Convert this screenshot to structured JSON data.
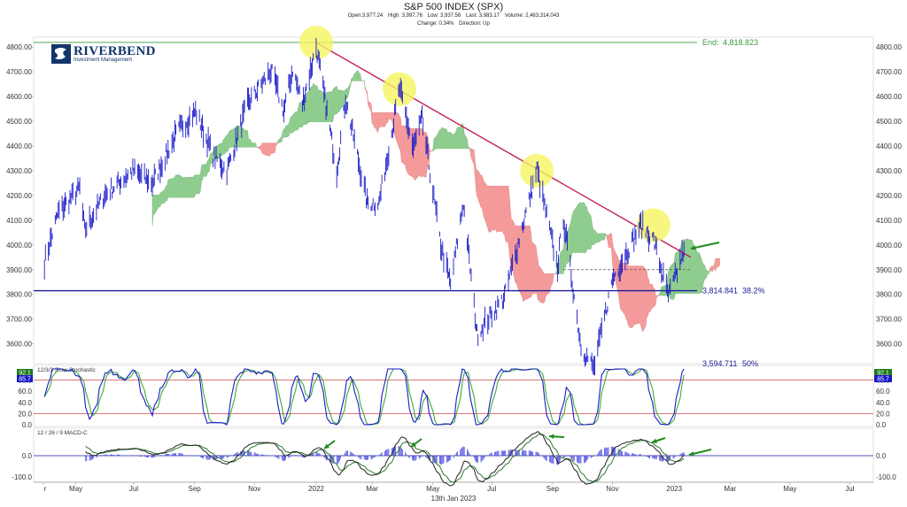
{
  "header": {
    "title": "S&P 500 INDEX (SPX)",
    "open": "Open:3,977.24",
    "high": "High: 3,997.76",
    "low": "Low: 3,937.56",
    "last": "Last: 3,983.17",
    "volume": "Volume: 2,463,314,043",
    "change": "Change: 0.34%",
    "direction": "Direction: Up"
  },
  "logo": {
    "name": "RIVERBEND",
    "subtitle": "Investment Management"
  },
  "footer": {
    "date": "13th Jan 2023"
  },
  "colors": {
    "price": "#1a1ac8",
    "trendline": "#c41e5a",
    "cloud_bull": "#8fcd8f",
    "cloud_bear": "#f49a9a",
    "end_line": "#3a9a3a",
    "fib_line": "#1a1a9c",
    "highlight": "#f5f560",
    "arrow": "#1e8c1e",
    "stoch_k": "#1a1ac8",
    "stoch_d": "#3caa3c",
    "level_line": "#d04848"
  },
  "chart_data": [
    {
      "type": "line",
      "title": "S&P 500 INDEX (SPX)",
      "x_axis": {
        "tick_labels": [
          "r",
          "May",
          "Jul",
          "Sep",
          "Nov",
          "2022",
          "Mar",
          "May",
          "Jul",
          "Sep",
          "Nov",
          "2023",
          "Mar",
          "May",
          "Jul"
        ]
      },
      "y_axis": {
        "ylim": [
          3520,
          4840
        ],
        "tick_labels": [
          "3600.00",
          "3700.00",
          "3800.00",
          "3900.00",
          "4000.00",
          "4100.00",
          "4200.00",
          "4300.00",
          "4400.00",
          "4500.00",
          "4600.00",
          "4700.00",
          "4800.00"
        ]
      },
      "grid": false,
      "series": [
        {
          "kind": "ohlc-daily-approx",
          "anchors": [
            [
              "2021-04-01",
              3930
            ],
            [
              "2021-04-15",
              4130
            ],
            [
              "2021-05-07",
              4230
            ],
            [
              "2021-05-12",
              4060
            ],
            [
              "2021-06-01",
              4200
            ],
            [
              "2021-06-30",
              4300
            ],
            [
              "2021-07-20",
              4250
            ],
            [
              "2021-08-15",
              4460
            ],
            [
              "2021-09-02",
              4540
            ],
            [
              "2021-09-20",
              4360
            ],
            [
              "2021-10-04",
              4300
            ],
            [
              "2021-10-25",
              4570
            ],
            [
              "2021-11-18",
              4705
            ],
            [
              "2021-12-01",
              4540
            ],
            [
              "2021-12-10",
              4710
            ],
            [
              "2021-12-20",
              4570
            ],
            [
              "2022-01-03",
              4800
            ],
            [
              "2022-01-24",
              4300
            ],
            [
              "2022-02-02",
              4590
            ],
            [
              "2022-02-24",
              4170
            ],
            [
              "2022-03-08",
              4170
            ],
            [
              "2022-03-29",
              4630
            ],
            [
              "2022-04-12",
              4390
            ],
            [
              "2022-04-21",
              4510
            ],
            [
              "2022-05-10",
              4000
            ],
            [
              "2022-05-20",
              3840
            ],
            [
              "2022-06-02",
              4170
            ],
            [
              "2022-06-16",
              3640
            ],
            [
              "2022-07-14",
              3790
            ],
            [
              "2022-08-16",
              4305
            ],
            [
              "2022-09-06",
              3910
            ],
            [
              "2022-09-12",
              4110
            ],
            [
              "2022-09-30",
              3590
            ],
            [
              "2022-10-13",
              3500
            ],
            [
              "2022-11-01",
              3860
            ],
            [
              "2022-11-30",
              4080
            ],
            [
              "2022-12-13",
              4020
            ],
            [
              "2022-12-28",
              3790
            ],
            [
              "2023-01-06",
              3890
            ],
            [
              "2023-01-13",
              3983
            ]
          ]
        },
        {
          "name": "Ichimoku cloud",
          "kind": "cloud"
        },
        {
          "kind": "trendline",
          "from": [
            "2022-01-03",
            4818
          ],
          "to": [
            "2023-01-20",
            3950
          ]
        }
      ],
      "annotations": [
        {
          "label": "End:",
          "value": "4,818.823",
          "y": 4818.823
        },
        {
          "label": "3,814.841",
          "pct": "38.2%",
          "y": 3814.841
        },
        {
          "label": "3,594.711",
          "pct": "50%",
          "y": 3594.711
        }
      ],
      "highlights": [
        [
          "2022-01-03",
          4818
        ],
        [
          "2022-03-29",
          4630
        ],
        [
          "2022-08-16",
          4300
        ],
        [
          "2022-12-13",
          4080
        ]
      ]
    },
    {
      "type": "line",
      "title": "12/3/3 Slow Stochastic",
      "y_axis": {
        "ylim": [
          0,
          100
        ],
        "tick_labels": [
          "0.0",
          "20.0",
          "40.0",
          "60.0",
          "80.0"
        ]
      },
      "levels": [
        20,
        80
      ],
      "current": {
        "k": "92.1",
        "d": "85.7"
      }
    },
    {
      "type": "line",
      "title": "12 / 26 / 9 MACD-C",
      "y_axis": {
        "ylim": [
          -100,
          100
        ],
        "tick_labels": [
          "0.0",
          "-100.0"
        ]
      }
    }
  ]
}
